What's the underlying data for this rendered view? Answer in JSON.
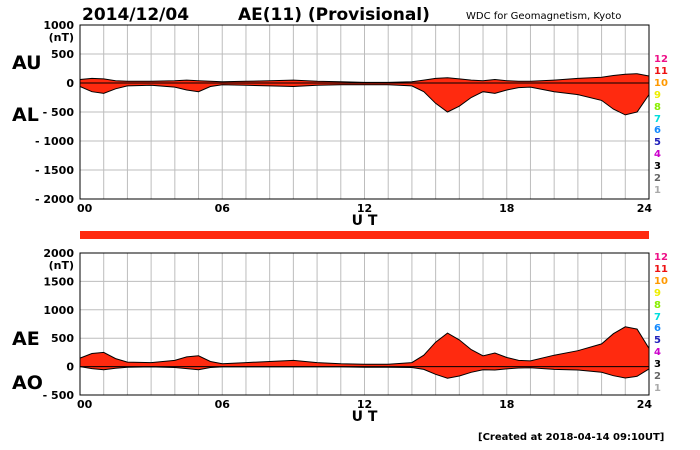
{
  "header": {
    "date": "2014/12/04",
    "title": "AE(11) (Provisional)",
    "credit": "WDC for Geomagnetism, Kyoto"
  },
  "footer": {
    "created": "[Created at 2018-04-14 09:10UT]"
  },
  "colors": {
    "fill": "#ff2a0f",
    "outline": "#000000",
    "grid": "#bdbdbd",
    "bar": "#ff2a0f"
  },
  "station_stack": [
    {
      "label": "12",
      "color": "#ee1188"
    },
    {
      "label": "11",
      "color": "#ee1111"
    },
    {
      "label": "10",
      "color": "#ff9900"
    },
    {
      "label": "9",
      "color": "#eeee00"
    },
    {
      "label": "8",
      "color": "#88ee00"
    },
    {
      "label": "7",
      "color": "#00dddd"
    },
    {
      "label": "6",
      "color": "#1188ff"
    },
    {
      "label": "5",
      "color": "#2222bb"
    },
    {
      "label": "4",
      "color": "#cc00cc"
    },
    {
      "label": "3",
      "color": "#000000"
    },
    {
      "label": "2",
      "color": "#666666"
    },
    {
      "label": "1",
      "color": "#aaaaaa"
    }
  ],
  "chart_data": [
    {
      "type": "area",
      "labels": {
        "upper": "AU",
        "lower": "AL"
      },
      "unit": "(nT)",
      "xlabel": "U T",
      "xlim": [
        0,
        24
      ],
      "xticks": [
        "00",
        "06",
        "12",
        "18",
        "24"
      ],
      "ylim": [
        -2000,
        1000
      ],
      "yticks": [
        1000,
        500,
        0,
        -500,
        -1000,
        -1500,
        -2000
      ],
      "ytick_labels": [
        "1000",
        "500",
        "0",
        "- 500",
        "- 1000",
        "- 1500",
        "- 2000"
      ],
      "grid": true,
      "x_hours": [
        0,
        0.5,
        1,
        1.5,
        2,
        3,
        4,
        4.5,
        5,
        5.5,
        6,
        7,
        8,
        9,
        10,
        11,
        12,
        13,
        14,
        14.5,
        15,
        15.5,
        16,
        16.5,
        17,
        17.5,
        18,
        18.5,
        19,
        20,
        21,
        22,
        22.5,
        23,
        23.5,
        24
      ],
      "series": [
        {
          "name": "AU",
          "values": [
            60,
            80,
            70,
            40,
            30,
            30,
            40,
            50,
            40,
            30,
            20,
            30,
            40,
            50,
            30,
            20,
            10,
            10,
            20,
            50,
            80,
            90,
            70,
            50,
            40,
            60,
            40,
            30,
            30,
            50,
            80,
            100,
            130,
            150,
            160,
            120
          ]
        },
        {
          "name": "AL",
          "values": [
            -60,
            -150,
            -180,
            -100,
            -50,
            -40,
            -70,
            -120,
            -150,
            -60,
            -30,
            -40,
            -50,
            -60,
            -40,
            -30,
            -30,
            -30,
            -50,
            -150,
            -350,
            -500,
            -400,
            -250,
            -150,
            -180,
            -120,
            -80,
            -70,
            -150,
            -200,
            -300,
            -450,
            -550,
            -500,
            -200
          ]
        }
      ]
    },
    {
      "type": "area",
      "labels": {
        "upper": "AE",
        "lower": "AO"
      },
      "unit": "(nT)",
      "xlabel": "U T",
      "xlim": [
        0,
        24
      ],
      "xticks": [
        "00",
        "06",
        "12",
        "18",
        "24"
      ],
      "ylim": [
        -500,
        2000
      ],
      "yticks": [
        2000,
        1500,
        1000,
        500,
        0,
        -500
      ],
      "ytick_labels": [
        "2000",
        "1500",
        "1000",
        "500",
        "0",
        "- 500"
      ],
      "grid": true,
      "x_hours": [
        0,
        0.5,
        1,
        1.5,
        2,
        3,
        4,
        4.5,
        5,
        5.5,
        6,
        7,
        8,
        9,
        10,
        11,
        12,
        13,
        14,
        14.5,
        15,
        15.5,
        16,
        16.5,
        17,
        17.5,
        18,
        18.5,
        19,
        20,
        21,
        22,
        22.5,
        23,
        23.5,
        24
      ],
      "series": [
        {
          "name": "AE",
          "values": [
            150,
            230,
            250,
            140,
            80,
            70,
            110,
            170,
            190,
            90,
            50,
            70,
            90,
            110,
            70,
            50,
            40,
            40,
            70,
            200,
            430,
            590,
            470,
            300,
            190,
            240,
            160,
            110,
            100,
            200,
            280,
            400,
            580,
            700,
            660,
            320
          ]
        },
        {
          "name": "AO",
          "values": [
            0,
            -35,
            -55,
            -30,
            -10,
            -5,
            -15,
            -35,
            -55,
            -15,
            -5,
            -5,
            -5,
            -5,
            -5,
            -5,
            -10,
            -10,
            -15,
            -50,
            -135,
            -205,
            -165,
            -100,
            -55,
            -60,
            -40,
            -25,
            -20,
            -50,
            -60,
            -100,
            -160,
            -200,
            -170,
            -40
          ]
        }
      ]
    }
  ]
}
